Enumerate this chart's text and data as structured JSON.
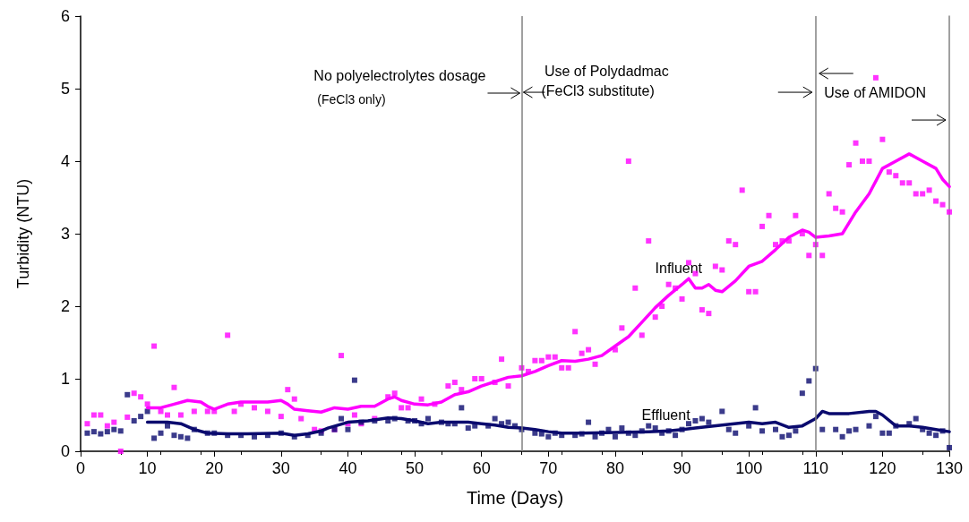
{
  "chart_data": {
    "type": "scatter",
    "xlabel": "Time (Days)",
    "ylabel": "Turbidity (NTU)",
    "xlim": [
      0,
      130
    ],
    "xticks": [
      0,
      10,
      20,
      30,
      40,
      50,
      60,
      70,
      80,
      90,
      100,
      110,
      120,
      130
    ],
    "ylim": [
      0,
      6
    ],
    "yticks": [
      0,
      1,
      2,
      3,
      4,
      5,
      6
    ],
    "grid": false,
    "legend": false,
    "marker": "square",
    "annotations": [
      "No polyelectrolytes dosage",
      "(FeCl3 only)",
      {
        "text": "Use of Polydadmac",
        "x": 66,
        "y": 4.95
      },
      "(FeCl3 substitute)",
      {
        "text": "Use of AMIDON",
        "x": 110,
        "y": 4.95
      }
    ],
    "ref_lines": [
      {
        "axis": "x",
        "value": 66,
        "color": "#808080"
      },
      {
        "axis": "x",
        "value": 110,
        "color": "#808080"
      }
    ],
    "series": [
      {
        "type": "scatter",
        "color": "#ff00ff",
        "x": [
          1,
          2,
          3,
          4,
          5,
          6,
          7,
          8,
          9,
          10,
          11,
          12,
          13,
          14,
          15,
          17,
          19,
          20,
          22,
          23,
          24,
          26,
          28,
          30,
          31,
          32,
          33,
          35,
          36,
          38,
          39,
          40,
          41,
          42,
          44,
          46,
          47,
          48,
          49,
          51,
          53,
          55,
          56,
          57,
          59,
          60,
          62,
          63,
          64,
          66,
          67,
          68,
          69,
          70,
          71,
          72,
          73,
          74,
          75,
          76,
          77,
          80,
          81,
          82,
          83,
          84,
          85,
          86,
          87,
          88,
          89,
          90,
          91,
          92,
          93,
          94,
          95,
          96,
          97,
          98,
          99,
          100,
          101,
          102,
          103,
          104,
          105,
          106,
          107,
          108,
          109,
          110,
          111,
          112,
          113,
          114,
          115,
          116,
          117,
          118,
          119,
          120,
          121,
          122,
          123,
          124,
          125,
          126,
          127,
          128,
          129,
          130
        ],
        "values": [
          0.38,
          0.5,
          0.5,
          0.35,
          0.4,
          0.0,
          0.47,
          0.8,
          0.75,
          0.65,
          1.45,
          0.55,
          0.5,
          0.88,
          0.5,
          0.55,
          0.55,
          0.55,
          1.6,
          0.55,
          0.65,
          0.6,
          0.55,
          0.48,
          0.85,
          0.72,
          0.45,
          0.3,
          0.28,
          0.3,
          1.32,
          0.38,
          0.5,
          0.38,
          0.45,
          0.75,
          0.8,
          0.6,
          0.6,
          0.72,
          0.65,
          0.9,
          0.95,
          0.85,
          1.0,
          1.0,
          0.95,
          1.27,
          0.9,
          1.15,
          1.1,
          1.25,
          1.25,
          1.3,
          1.3,
          1.15,
          1.15,
          1.65,
          1.35,
          1.4,
          1.2,
          1.4,
          1.7,
          4.0,
          2.25,
          1.6,
          2.9,
          1.85,
          2.0,
          2.3,
          2.25,
          2.1,
          2.6,
          2.45,
          1.95,
          1.9,
          2.55,
          2.5,
          2.9,
          2.85,
          3.6,
          2.2,
          2.2,
          3.1,
          3.25,
          2.85,
          2.9,
          2.9,
          3.25,
          3.0,
          2.7,
          2.85,
          2.7,
          3.55,
          3.35,
          3.3,
          3.95,
          4.25,
          4.0,
          4.0,
          5.15,
          4.3,
          3.85,
          3.8,
          3.7,
          3.7,
          3.55,
          3.55,
          3.6,
          3.45,
          3.4,
          3.3
        ]
      },
      {
        "type": "scatter",
        "color": "#0a0a6e",
        "x": [
          1,
          2,
          3,
          4,
          5,
          6,
          7,
          8,
          9,
          10,
          11,
          12,
          13,
          14,
          15,
          16,
          17,
          19,
          20,
          22,
          24,
          26,
          28,
          30,
          32,
          34,
          36,
          38,
          39,
          40,
          41,
          42,
          44,
          46,
          47,
          49,
          50,
          51,
          52,
          54,
          55,
          56,
          57,
          58,
          59,
          61,
          62,
          63,
          64,
          65,
          66,
          68,
          69,
          70,
          71,
          72,
          74,
          75,
          76,
          77,
          78,
          79,
          80,
          81,
          82,
          83,
          84,
          85,
          86,
          87,
          88,
          89,
          90,
          91,
          92,
          93,
          94,
          96,
          97,
          98,
          100,
          101,
          102,
          104,
          105,
          106,
          107,
          108,
          109,
          110,
          111,
          113,
          114,
          115,
          116,
          118,
          119,
          120,
          121,
          122,
          124,
          125,
          126,
          127,
          128,
          129,
          130
        ],
        "values": [
          0.25,
          0.27,
          0.24,
          0.27,
          0.3,
          0.28,
          0.78,
          0.42,
          0.48,
          0.55,
          0.18,
          0.25,
          0.35,
          0.22,
          0.2,
          0.18,
          0.3,
          0.25,
          0.25,
          0.22,
          0.22,
          0.2,
          0.22,
          0.25,
          0.2,
          0.22,
          0.25,
          0.3,
          0.45,
          0.3,
          0.98,
          0.4,
          0.42,
          0.42,
          0.45,
          0.42,
          0.42,
          0.38,
          0.45,
          0.4,
          0.38,
          0.38,
          0.6,
          0.32,
          0.35,
          0.35,
          0.45,
          0.38,
          0.4,
          0.35,
          0.3,
          0.25,
          0.24,
          0.2,
          0.25,
          0.22,
          0.22,
          0.24,
          0.4,
          0.2,
          0.25,
          0.3,
          0.2,
          0.32,
          0.25,
          0.22,
          0.28,
          0.35,
          0.32,
          0.25,
          0.28,
          0.22,
          0.3,
          0.38,
          0.42,
          0.45,
          0.4,
          0.55,
          0.3,
          0.25,
          0.35,
          0.6,
          0.28,
          0.3,
          0.2,
          0.22,
          0.28,
          0.8,
          0.97,
          1.14,
          0.3,
          0.3,
          0.2,
          0.28,
          0.3,
          0.35,
          0.48,
          0.25,
          0.25,
          0.35,
          0.38,
          0.45,
          0.3,
          0.25,
          0.22,
          0.28,
          0.05
        ]
      },
      {
        "type": "line",
        "name": "Influent",
        "color": "#ff00ff",
        "marker": "none",
        "x": [
          10,
          12,
          14,
          16,
          18,
          19,
          20,
          22,
          24,
          28,
          30,
          31,
          32,
          34,
          36,
          38,
          40,
          42,
          44,
          46,
          47,
          48,
          50,
          52,
          54,
          56,
          58,
          60,
          62,
          64,
          66,
          68,
          70,
          72,
          74,
          76,
          78,
          80,
          82,
          84,
          86,
          88,
          90,
          91,
          92,
          93,
          94,
          95,
          96,
          98,
          100,
          102,
          104,
          106,
          107,
          108,
          109,
          110,
          112,
          114,
          116,
          118,
          120,
          122,
          124,
          126,
          128,
          129,
          130
        ],
        "values": [
          0.6,
          0.6,
          0.65,
          0.7,
          0.68,
          0.62,
          0.58,
          0.65,
          0.68,
          0.68,
          0.7,
          0.65,
          0.58,
          0.56,
          0.54,
          0.6,
          0.58,
          0.62,
          0.62,
          0.72,
          0.75,
          0.7,
          0.65,
          0.64,
          0.68,
          0.78,
          0.82,
          0.9,
          0.96,
          1.02,
          1.04,
          1.1,
          1.18,
          1.25,
          1.24,
          1.27,
          1.32,
          1.45,
          1.58,
          1.78,
          1.98,
          2.15,
          2.3,
          2.38,
          2.25,
          2.25,
          2.3,
          2.22,
          2.2,
          2.35,
          2.55,
          2.62,
          2.78,
          2.95,
          3.0,
          3.05,
          3.02,
          2.95,
          2.97,
          3.0,
          3.3,
          3.55,
          3.9,
          4.0,
          4.1,
          4.0,
          3.9,
          3.75,
          3.65
        ]
      },
      {
        "type": "line",
        "name": "Effluent",
        "color": "#0a0a6e",
        "marker": "none",
        "x": [
          10,
          13,
          15,
          17,
          19,
          22,
          25,
          30,
          32,
          34,
          36,
          37,
          40,
          43,
          46,
          48,
          50,
          52,
          54,
          56,
          58,
          60,
          62,
          64,
          66,
          68,
          70,
          72,
          75,
          80,
          85,
          88,
          92,
          96,
          100,
          102,
          104,
          106,
          108,
          110,
          111,
          112,
          115,
          118,
          119,
          120,
          122,
          124,
          126,
          128,
          130
        ],
        "values": [
          0.4,
          0.4,
          0.38,
          0.3,
          0.25,
          0.24,
          0.24,
          0.25,
          0.22,
          0.24,
          0.28,
          0.32,
          0.4,
          0.42,
          0.46,
          0.45,
          0.42,
          0.38,
          0.4,
          0.4,
          0.4,
          0.38,
          0.36,
          0.33,
          0.32,
          0.3,
          0.27,
          0.25,
          0.25,
          0.26,
          0.27,
          0.28,
          0.32,
          0.36,
          0.4,
          0.38,
          0.4,
          0.33,
          0.35,
          0.45,
          0.55,
          0.52,
          0.52,
          0.55,
          0.55,
          0.5,
          0.35,
          0.35,
          0.33,
          0.3,
          0.27
        ]
      }
    ]
  }
}
